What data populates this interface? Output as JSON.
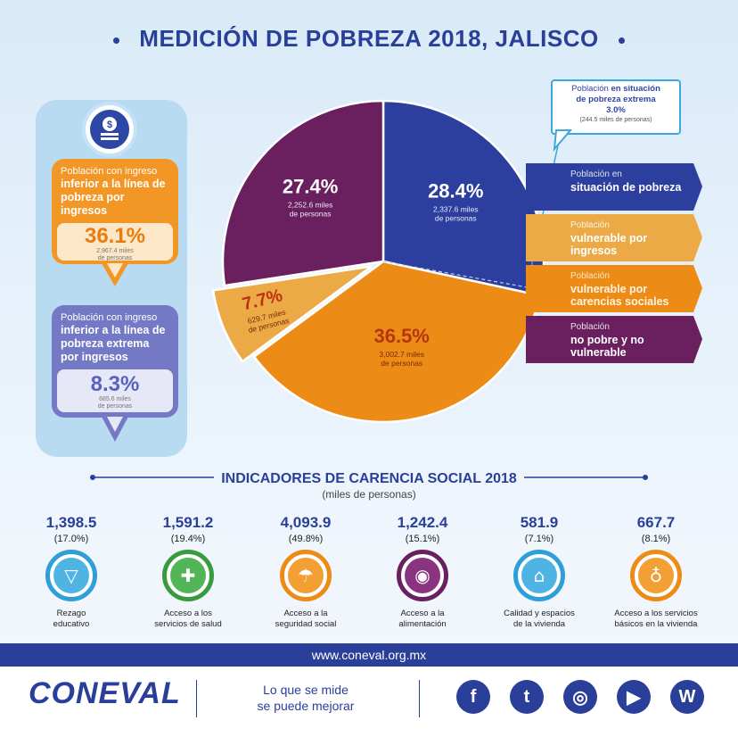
{
  "header": {
    "title": "MEDICIÓN DE POBREZA 2018, JALISCO"
  },
  "left_panel": {
    "box1": {
      "line1": "Población con ingreso",
      "bold": "inferior a la línea de pobreza por ingresos",
      "value": "36.1%",
      "detail1": "2,967.4 miles",
      "detail2": "de personas"
    },
    "box2": {
      "line1": "Población con ingreso",
      "bold": "inferior a la línea de pobreza extrema por ingresos",
      "value": "8.3%",
      "detail1": "685.6 miles",
      "detail2": "de personas"
    }
  },
  "callout": {
    "line1": "Población",
    "bold1": "en situación",
    "bold2": "de pobreza extrema",
    "value": "3.0%",
    "detail": "(244.5 miles de personas)"
  },
  "legend": [
    {
      "small": "Población en",
      "bold": "situación de pobreza",
      "color": "#2d3f9e"
    },
    {
      "small": "Población",
      "bold": "vulnerable por ingresos",
      "color": "#ecaa46"
    },
    {
      "small": "Población",
      "bold": "vulnerable por carencias sociales",
      "color": "#ed8b17"
    },
    {
      "small": "Población",
      "bold": "no pobre y no vulnerable",
      "color": "#6a1f5f"
    }
  ],
  "chart_data": {
    "type": "pie",
    "title": "Medición de pobreza 2018, Jalisco",
    "slices": [
      {
        "label": "Población en situación de pobreza",
        "value": 28.4,
        "pct": "28.4%",
        "detail1": "2,337.6 miles",
        "detail2": "de personas",
        "color": "#2d3f9e"
      },
      {
        "label": "Población vulnerable por carencias sociales",
        "value": 36.5,
        "pct": "36.5%",
        "detail1": "3,002.7 miles",
        "detail2": "de personas",
        "color": "#ed8b17"
      },
      {
        "label": "Población vulnerable por ingresos",
        "value": 7.7,
        "pct": "7.7%",
        "detail1": "629.7 miles",
        "detail2": "de personas",
        "color": "#ecaa46"
      },
      {
        "label": "Población no pobre y no vulnerable",
        "value": 27.4,
        "pct": "27.4%",
        "detail1": "2,252.6 miles",
        "detail2": "de personas",
        "color": "#6a1f5f"
      }
    ]
  },
  "indicators": {
    "title": "INDICADORES DE CARENCIA SOCIAL 2018",
    "subtitle": "(miles de personas)",
    "items": [
      {
        "value": "1,398.5",
        "pct": "(17.0%)",
        "label1": "Rezago",
        "label2": "educativo",
        "ring": "#2e9fd8",
        "fill": "#4fb3e3",
        "icon": "education-icon",
        "glyph": "▽"
      },
      {
        "value": "1,591.2",
        "pct": "(19.4%)",
        "label1": "Acceso a los",
        "label2": "servicios de salud",
        "ring": "#3a9a3f",
        "fill": "#52b557",
        "icon": "health-icon",
        "glyph": "✚"
      },
      {
        "value": "4,093.9",
        "pct": "(49.8%)",
        "label1": "Acceso a la",
        "label2": "seguridad social",
        "ring": "#ed8b17",
        "fill": "#f29f33",
        "icon": "social-security-icon",
        "glyph": "☂"
      },
      {
        "value": "1,242.4",
        "pct": "(15.1%)",
        "label1": "Acceso a la",
        "label2": "alimentación",
        "ring": "#6a1f5f",
        "fill": "#8a3480",
        "icon": "food-icon",
        "glyph": "◉"
      },
      {
        "value": "581.9",
        "pct": "(7.1%)",
        "label1": "Calidad y espacios",
        "label2": "de la vivienda",
        "ring": "#2e9fd8",
        "fill": "#4fb3e3",
        "icon": "housing-icon",
        "glyph": "⌂"
      },
      {
        "value": "667.7",
        "pct": "(8.1%)",
        "label1": "Acceso a los servicios",
        "label2": "básicos en la vivienda",
        "ring": "#ed8b17",
        "fill": "#f29f33",
        "icon": "water-tap-icon",
        "glyph": "♁"
      }
    ]
  },
  "footer": {
    "url": "www.coneval.org.mx",
    "logo": "CONEVAL",
    "slogan1": "Lo que se mide",
    "slogan2": "se puede mejorar",
    "social": [
      {
        "icon": "facebook-icon",
        "glyph": "f"
      },
      {
        "icon": "twitter-icon",
        "glyph": "t"
      },
      {
        "icon": "instagram-icon",
        "glyph": "◎"
      },
      {
        "icon": "youtube-icon",
        "glyph": "▶"
      },
      {
        "icon": "wordpress-icon",
        "glyph": "W"
      }
    ]
  }
}
